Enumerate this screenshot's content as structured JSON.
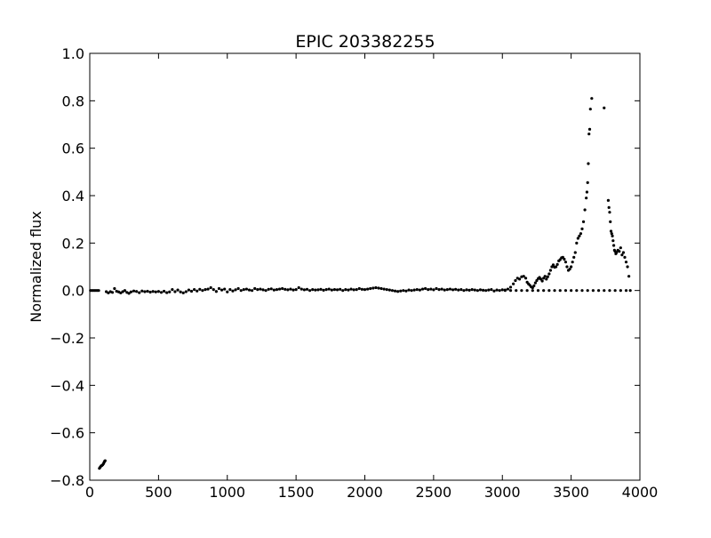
{
  "chart_data": {
    "type": "scatter",
    "title": "EPIC 203382255",
    "xlabel": "",
    "ylabel": "Normalized flux",
    "xlim": [
      0,
      4000
    ],
    "ylim": [
      -0.8,
      1.0
    ],
    "xticks": [
      0,
      500,
      1000,
      1500,
      2000,
      2500,
      3000,
      3500,
      4000
    ],
    "yticks": [
      -0.8,
      -0.6,
      -0.4,
      -0.2,
      0.0,
      0.2,
      0.4,
      0.6,
      0.8,
      1.0
    ],
    "xtick_labels": [
      "0",
      "500",
      "1000",
      "1500",
      "2000",
      "2500",
      "3000",
      "3500",
      "4000"
    ],
    "ytick_labels": [
      "−0.8",
      "−0.6",
      "−0.4",
      "−0.2",
      "0.0",
      "0.2",
      "0.4",
      "0.6",
      "0.8",
      "1.0"
    ],
    "grid": false,
    "legend": "none",
    "marker_color": "#000000",
    "series": [
      {
        "values": [
          [
            5,
            0.0
          ],
          [
            15,
            0.0
          ],
          [
            25,
            0.0
          ],
          [
            35,
            0.0
          ],
          [
            45,
            0.0
          ],
          [
            55,
            0.0
          ],
          [
            65,
            0.0
          ],
          [
            70,
            -0.75
          ],
          [
            76,
            -0.745
          ],
          [
            82,
            -0.74
          ],
          [
            88,
            -0.738
          ],
          [
            94,
            -0.735
          ],
          [
            100,
            -0.73
          ],
          [
            104,
            -0.725
          ],
          [
            108,
            -0.72
          ],
          [
            112,
            -0.718
          ],
          [
            120,
            -0.005
          ],
          [
            135,
            -0.01
          ],
          [
            150,
            -0.005
          ],
          [
            165,
            -0.008
          ],
          [
            180,
            0.008
          ],
          [
            195,
            -0.003
          ],
          [
            210,
            -0.006
          ],
          [
            225,
            -0.01
          ],
          [
            240,
            -0.005
          ],
          [
            255,
            0.0
          ],
          [
            270,
            -0.008
          ],
          [
            285,
            -0.012
          ],
          [
            300,
            -0.006
          ],
          [
            320,
            -0.002
          ],
          [
            340,
            -0.004
          ],
          [
            360,
            -0.009
          ],
          [
            380,
            -0.002
          ],
          [
            400,
            -0.005
          ],
          [
            420,
            -0.003
          ],
          [
            440,
            -0.007
          ],
          [
            460,
            -0.004
          ],
          [
            480,
            -0.006
          ],
          [
            500,
            -0.004
          ],
          [
            520,
            -0.008
          ],
          [
            540,
            -0.003
          ],
          [
            560,
            -0.009
          ],
          [
            580,
            -0.006
          ],
          [
            600,
            0.004
          ],
          [
            620,
            -0.005
          ],
          [
            640,
            0.002
          ],
          [
            660,
            -0.006
          ],
          [
            680,
            -0.01
          ],
          [
            700,
            -0.005
          ],
          [
            720,
            0.002
          ],
          [
            740,
            -0.003
          ],
          [
            760,
            0.004
          ],
          [
            780,
            -0.002
          ],
          [
            800,
            0.005
          ],
          [
            820,
            0.0
          ],
          [
            840,
            0.004
          ],
          [
            860,
            0.006
          ],
          [
            880,
            0.012
          ],
          [
            900,
            0.004
          ],
          [
            920,
            -0.004
          ],
          [
            940,
            0.008
          ],
          [
            960,
            0.002
          ],
          [
            980,
            0.006
          ],
          [
            1000,
            -0.006
          ],
          [
            1020,
            0.004
          ],
          [
            1040,
            -0.002
          ],
          [
            1060,
            0.003
          ],
          [
            1080,
            0.008
          ],
          [
            1100,
            0.0
          ],
          [
            1120,
            0.004
          ],
          [
            1140,
            0.006
          ],
          [
            1160,
            0.002
          ],
          [
            1180,
            0.0
          ],
          [
            1200,
            0.008
          ],
          [
            1220,
            0.004
          ],
          [
            1240,
            0.006
          ],
          [
            1260,
            0.003
          ],
          [
            1280,
            0.0
          ],
          [
            1300,
            0.005
          ],
          [
            1320,
            0.007
          ],
          [
            1340,
            0.002
          ],
          [
            1360,
            0.004
          ],
          [
            1380,
            0.006
          ],
          [
            1400,
            0.008
          ],
          [
            1420,
            0.005
          ],
          [
            1440,
            0.003
          ],
          [
            1460,
            0.006
          ],
          [
            1480,
            0.002
          ],
          [
            1500,
            0.004
          ],
          [
            1520,
            0.012
          ],
          [
            1540,
            0.006
          ],
          [
            1560,
            0.003
          ],
          [
            1580,
            0.005
          ],
          [
            1600,
            0.0
          ],
          [
            1620,
            0.004
          ],
          [
            1640,
            0.002
          ],
          [
            1660,
            0.003
          ],
          [
            1680,
            0.005
          ],
          [
            1700,
            0.001
          ],
          [
            1720,
            0.004
          ],
          [
            1740,
            0.006
          ],
          [
            1760,
            0.002
          ],
          [
            1780,
            0.004
          ],
          [
            1800,
            0.003
          ],
          [
            1820,
            0.005
          ],
          [
            1840,
            0.0
          ],
          [
            1860,
            0.004
          ],
          [
            1880,
            0.002
          ],
          [
            1900,
            0.006
          ],
          [
            1920,
            0.003
          ],
          [
            1940,
            0.004
          ],
          [
            1960,
            0.008
          ],
          [
            1980,
            0.005
          ],
          [
            2000,
            0.004
          ],
          [
            2020,
            0.006
          ],
          [
            2040,
            0.008
          ],
          [
            2060,
            0.01
          ],
          [
            2080,
            0.012
          ],
          [
            2100,
            0.01
          ],
          [
            2120,
            0.008
          ],
          [
            2140,
            0.006
          ],
          [
            2160,
            0.004
          ],
          [
            2180,
            0.002
          ],
          [
            2200,
            0.0
          ],
          [
            2220,
            -0.002
          ],
          [
            2240,
            -0.004
          ],
          [
            2260,
            -0.002
          ],
          [
            2280,
            0.0
          ],
          [
            2300,
            -0.002
          ],
          [
            2320,
            0.002
          ],
          [
            2340,
            0.0
          ],
          [
            2360,
            0.002
          ],
          [
            2380,
            0.004
          ],
          [
            2400,
            0.002
          ],
          [
            2420,
            0.006
          ],
          [
            2440,
            0.008
          ],
          [
            2460,
            0.004
          ],
          [
            2480,
            0.006
          ],
          [
            2500,
            0.003
          ],
          [
            2520,
            0.008
          ],
          [
            2540,
            0.004
          ],
          [
            2560,
            0.006
          ],
          [
            2580,
            0.002
          ],
          [
            2600,
            0.004
          ],
          [
            2620,
            0.006
          ],
          [
            2640,
            0.003
          ],
          [
            2660,
            0.005
          ],
          [
            2680,
            0.002
          ],
          [
            2700,
            0.004
          ],
          [
            2720,
            0.0
          ],
          [
            2740,
            0.003
          ],
          [
            2760,
            0.001
          ],
          [
            2780,
            0.004
          ],
          [
            2800,
            0.002
          ],
          [
            2820,
            0.0
          ],
          [
            2840,
            0.003
          ],
          [
            2860,
            0.001
          ],
          [
            2880,
            0.0
          ],
          [
            2900,
            0.002
          ],
          [
            2920,
            0.004
          ],
          [
            2940,
            -0.002
          ],
          [
            2960,
            0.002
          ],
          [
            2980,
            0.0
          ],
          [
            3000,
            0.003
          ],
          [
            3020,
            0.002
          ],
          [
            3040,
            0.006
          ],
          [
            3060,
            0.014
          ],
          [
            3080,
            0.028
          ],
          [
            3095,
            0.042
          ],
          [
            3110,
            0.052
          ],
          [
            3125,
            0.048
          ],
          [
            3140,
            0.058
          ],
          [
            3155,
            0.06
          ],
          [
            3170,
            0.052
          ],
          [
            3180,
            0.035
          ],
          [
            3190,
            0.028
          ],
          [
            3200,
            0.022
          ],
          [
            3210,
            0.015
          ],
          [
            3220,
            0.012
          ],
          [
            3230,
            0.02
          ],
          [
            3240,
            0.032
          ],
          [
            3250,
            0.042
          ],
          [
            3260,
            0.05
          ],
          [
            3270,
            0.055
          ],
          [
            3280,
            0.048
          ],
          [
            3290,
            0.04
          ],
          [
            3300,
            0.052
          ],
          [
            3310,
            0.06
          ],
          [
            3320,
            0.048
          ],
          [
            3330,
            0.058
          ],
          [
            3340,
            0.07
          ],
          [
            3350,
            0.085
          ],
          [
            3360,
            0.1
          ],
          [
            3370,
            0.108
          ],
          [
            3380,
            0.098
          ],
          [
            3390,
            0.1
          ],
          [
            3400,
            0.11
          ],
          [
            3410,
            0.125
          ],
          [
            3420,
            0.13
          ],
          [
            3430,
            0.138
          ],
          [
            3440,
            0.14
          ],
          [
            3450,
            0.132
          ],
          [
            3460,
            0.12
          ],
          [
            3470,
            0.1
          ],
          [
            3480,
            0.085
          ],
          [
            3490,
            0.09
          ],
          [
            3500,
            0.1
          ],
          [
            3510,
            0.12
          ],
          [
            3520,
            0.14
          ],
          [
            3530,
            0.16
          ],
          [
            3540,
            0.2
          ],
          [
            3550,
            0.22
          ],
          [
            3560,
            0.23
          ],
          [
            3570,
            0.24
          ],
          [
            3580,
            0.26
          ],
          [
            3590,
            0.29
          ],
          [
            3600,
            0.34
          ],
          [
            3610,
            0.39
          ],
          [
            3615,
            0.415
          ],
          [
            3620,
            0.455
          ],
          [
            3625,
            0.535
          ],
          [
            3630,
            0.66
          ],
          [
            3635,
            0.68
          ],
          [
            3640,
            0.765
          ],
          [
            3650,
            0.81
          ],
          [
            3740,
            0.77
          ],
          [
            3770,
            0.38
          ],
          [
            3775,
            0.35
          ],
          [
            3780,
            0.33
          ],
          [
            3785,
            0.29
          ],
          [
            3790,
            0.25
          ],
          [
            3795,
            0.24
          ],
          [
            3800,
            0.23
          ],
          [
            3805,
            0.21
          ],
          [
            3810,
            0.19
          ],
          [
            3815,
            0.17
          ],
          [
            3820,
            0.165
          ],
          [
            3825,
            0.155
          ],
          [
            3830,
            0.16
          ],
          [
            3840,
            0.17
          ],
          [
            3850,
            0.165
          ],
          [
            3860,
            0.18
          ],
          [
            3870,
            0.15
          ],
          [
            3880,
            0.16
          ],
          [
            3890,
            0.14
          ],
          [
            3900,
            0.12
          ],
          [
            3910,
            0.1
          ],
          [
            3920,
            0.06
          ],
          [
            3020,
            0.0
          ],
          [
            3060,
            0.0
          ],
          [
            3100,
            0.0
          ],
          [
            3140,
            0.0
          ],
          [
            3180,
            0.0
          ],
          [
            3220,
            0.0
          ],
          [
            3260,
            0.0
          ],
          [
            3300,
            0.0
          ],
          [
            3340,
            0.0
          ],
          [
            3380,
            0.0
          ],
          [
            3420,
            0.0
          ],
          [
            3460,
            0.0
          ],
          [
            3500,
            0.0
          ],
          [
            3540,
            0.0
          ],
          [
            3580,
            0.0
          ],
          [
            3620,
            0.0
          ],
          [
            3660,
            0.0
          ],
          [
            3700,
            0.0
          ],
          [
            3740,
            0.0
          ],
          [
            3780,
            0.0
          ],
          [
            3820,
            0.0
          ],
          [
            3860,
            0.0
          ],
          [
            3900,
            0.0
          ],
          [
            3930,
            0.0
          ]
        ]
      }
    ]
  }
}
